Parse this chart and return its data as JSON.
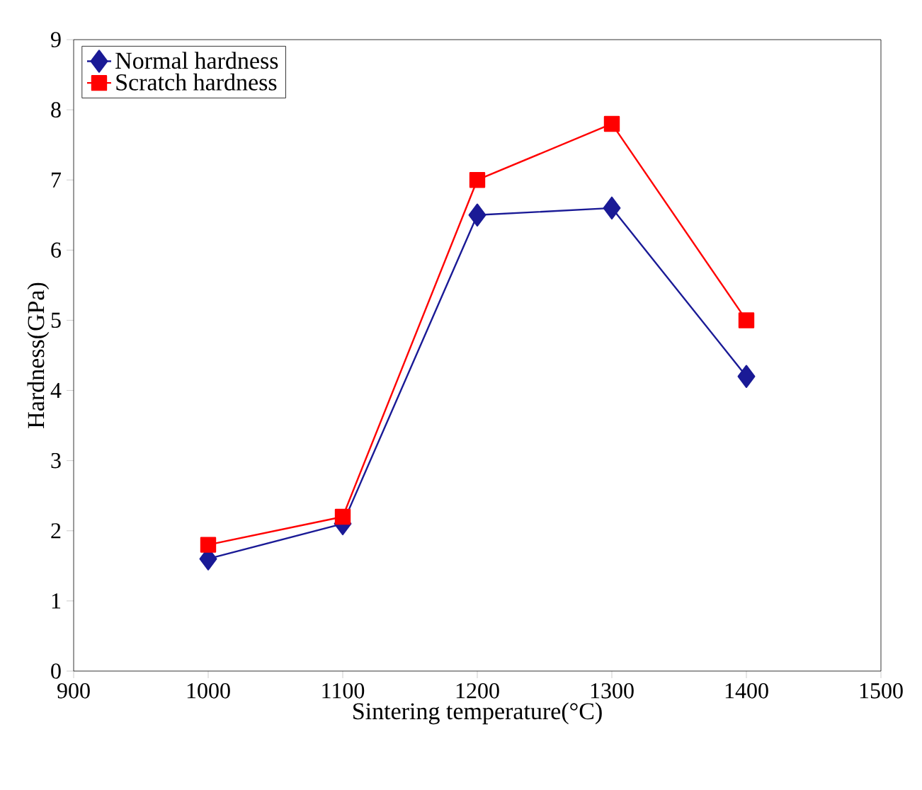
{
  "chart_data": {
    "type": "line",
    "xlabel": "Sintering temperature(°C)",
    "ylabel": "Hardness(GPa)",
    "x": [
      1000,
      1100,
      1200,
      1300,
      1400
    ],
    "series": [
      {
        "name": "Normal hardness",
        "color": "#1a1a96",
        "values": [
          1.6,
          2.1,
          6.5,
          6.6,
          4.2
        ],
        "marker": "diamond"
      },
      {
        "name": "Scratch hardness",
        "color": "#ff0000",
        "values": [
          1.8,
          2.2,
          7.0,
          7.8,
          5.0
        ],
        "marker": "square"
      }
    ],
    "xlim": [
      900,
      1500
    ],
    "xticks": [
      900,
      1000,
      1100,
      1200,
      1300,
      1400,
      1500
    ],
    "ylim": [
      0,
      9
    ],
    "yticks": [
      0,
      1,
      2,
      3,
      4,
      5,
      6,
      7,
      8,
      9
    ],
    "grid": false,
    "legend": "top left",
    "line_style": "solid"
  }
}
